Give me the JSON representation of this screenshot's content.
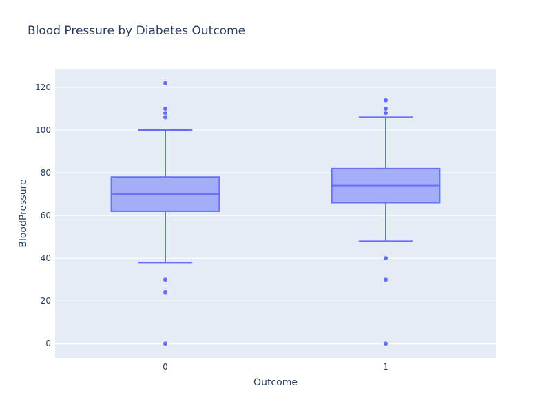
{
  "chart_data": {
    "type": "box",
    "title": "Blood Pressure by Diabetes Outcome",
    "xlabel": "Outcome",
    "ylabel": "BloodPressure",
    "categories": [
      "0",
      "1"
    ],
    "ylim": [
      -6.7,
      128.7
    ],
    "yticks": [
      0,
      20,
      40,
      60,
      80,
      100,
      120
    ],
    "grid": true,
    "boxes": [
      {
        "category": "0",
        "q1": 62,
        "median": 70,
        "q3": 78,
        "lowerfence": 38,
        "upperfence": 100,
        "outliers": [
          122,
          110,
          108,
          106,
          30,
          24,
          0
        ]
      },
      {
        "category": "1",
        "q1": 66,
        "median": 74,
        "q3": 82,
        "lowerfence": 48,
        "upperfence": 106,
        "outliers": [
          114,
          110,
          108,
          40,
          30,
          0
        ]
      }
    ],
    "colors": {
      "box_line": "#636efa",
      "box_fill": "rgba(99,110,250,0.5)",
      "plot_bg": "#e5ecf6",
      "grid": "#ffffff",
      "text": "#2a3f5f"
    }
  }
}
